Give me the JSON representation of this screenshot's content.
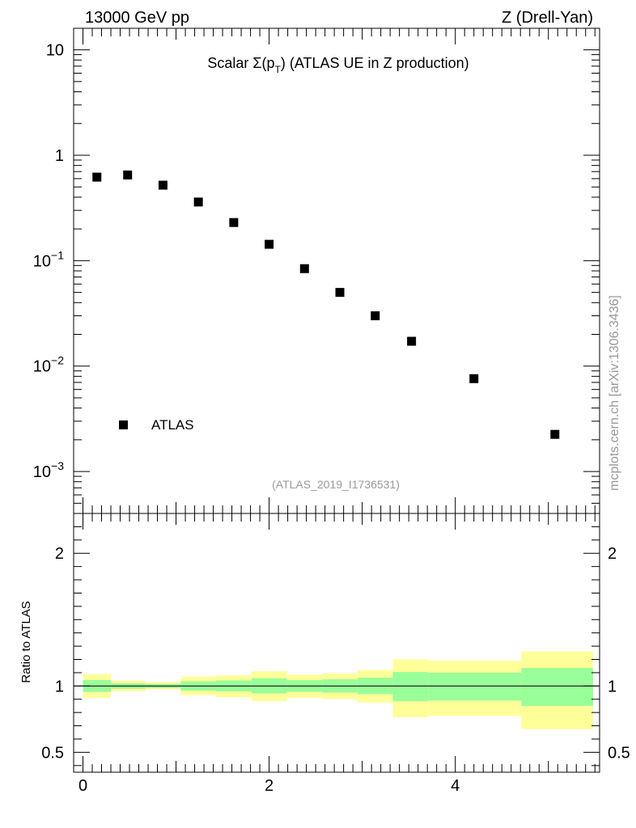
{
  "header": {
    "left_label": "13000 GeV pp",
    "right_label": "Z (Drell-Yan)"
  },
  "side_label": "mcplots.cern.ch [arXiv:1306.3436]",
  "chart_data": [
    {
      "type": "scatter",
      "panel": "main",
      "title_prefix": "Scalar Σ(p",
      "title_sub": "T",
      "title_suffix": ") (ATLAS UE in Z production)",
      "analysis_id": "(ATLAS_2019_I1736531)",
      "yscale": "log",
      "ylim": [
        0.0004,
        16
      ],
      "xlim": [
        -0.1,
        5.55
      ],
      "y_tick_labels": [
        {
          "base": "10",
          "exp": "",
          "value": 10
        },
        {
          "base": "1",
          "exp": "",
          "value": 1
        },
        {
          "base": "10",
          "exp": "−1",
          "value": 0.1
        },
        {
          "base": "10",
          "exp": "−2",
          "value": 0.01
        },
        {
          "base": "10",
          "exp": "−3",
          "value": 0.001
        }
      ],
      "legend": {
        "position": "bottom-left",
        "entries": [
          "ATLAS"
        ]
      },
      "series": [
        {
          "name": "ATLAS",
          "x": [
            0.15,
            0.48,
            0.86,
            1.24,
            1.62,
            2.0,
            2.38,
            2.76,
            3.14,
            3.53,
            4.2,
            5.07
          ],
          "y": [
            0.62,
            0.65,
            0.52,
            0.36,
            0.23,
            0.143,
            0.084,
            0.05,
            0.03,
            0.0172,
            0.0076,
            0.00225
          ]
        }
      ]
    },
    {
      "type": "area",
      "panel": "ratio",
      "ylabel": "Ratio to ATLAS",
      "ylim": [
        0.35,
        2.3
      ],
      "xlim": [
        -0.1,
        5.55
      ],
      "x_tick_labels": [
        "0",
        "2",
        "4"
      ],
      "x_tick_values": [
        0,
        2,
        4
      ],
      "y_tick_labels": [
        "2",
        "1",
        "0.5"
      ],
      "y_tick_values": [
        2,
        1,
        0.5
      ],
      "reference_line": 1,
      "band_colors": {
        "outer": "#ffff99",
        "inner": "#99ff99"
      },
      "bins": [
        {
          "lo": 0.0,
          "hi": 0.3,
          "outer": [
            0.91,
            1.09
          ],
          "inner": [
            0.955,
            1.045
          ]
        },
        {
          "lo": 0.3,
          "hi": 0.67,
          "outer": [
            0.96,
            1.04
          ],
          "inner": [
            0.98,
            1.02
          ]
        },
        {
          "lo": 0.67,
          "hi": 1.05,
          "outer": [
            0.975,
            1.03
          ],
          "inner": [
            0.985,
            1.015
          ]
        },
        {
          "lo": 1.05,
          "hi": 1.43,
          "outer": [
            0.93,
            1.07
          ],
          "inner": [
            0.965,
            1.035
          ]
        },
        {
          "lo": 1.43,
          "hi": 1.81,
          "outer": [
            0.915,
            1.08
          ],
          "inner": [
            0.958,
            1.042
          ]
        },
        {
          "lo": 1.81,
          "hi": 2.19,
          "outer": [
            0.885,
            1.11
          ],
          "inner": [
            0.944,
            1.058
          ]
        },
        {
          "lo": 2.19,
          "hi": 2.57,
          "outer": [
            0.91,
            1.085
          ],
          "inner": [
            0.956,
            1.044
          ]
        },
        {
          "lo": 2.57,
          "hi": 2.95,
          "outer": [
            0.9,
            1.095
          ],
          "inner": [
            0.95,
            1.05
          ]
        },
        {
          "lo": 2.95,
          "hi": 3.33,
          "outer": [
            0.875,
            1.12
          ],
          "inner": [
            0.938,
            1.062
          ]
        },
        {
          "lo": 3.33,
          "hi": 3.71,
          "outer": [
            0.765,
            1.2
          ],
          "inner": [
            0.885,
            1.105
          ]
        },
        {
          "lo": 3.71,
          "hi": 4.71,
          "outer": [
            0.775,
            1.19
          ],
          "inner": [
            0.89,
            1.1
          ]
        },
        {
          "lo": 4.71,
          "hi": 5.48,
          "outer": [
            0.675,
            1.26
          ],
          "inner": [
            0.85,
            1.135
          ]
        }
      ]
    }
  ]
}
